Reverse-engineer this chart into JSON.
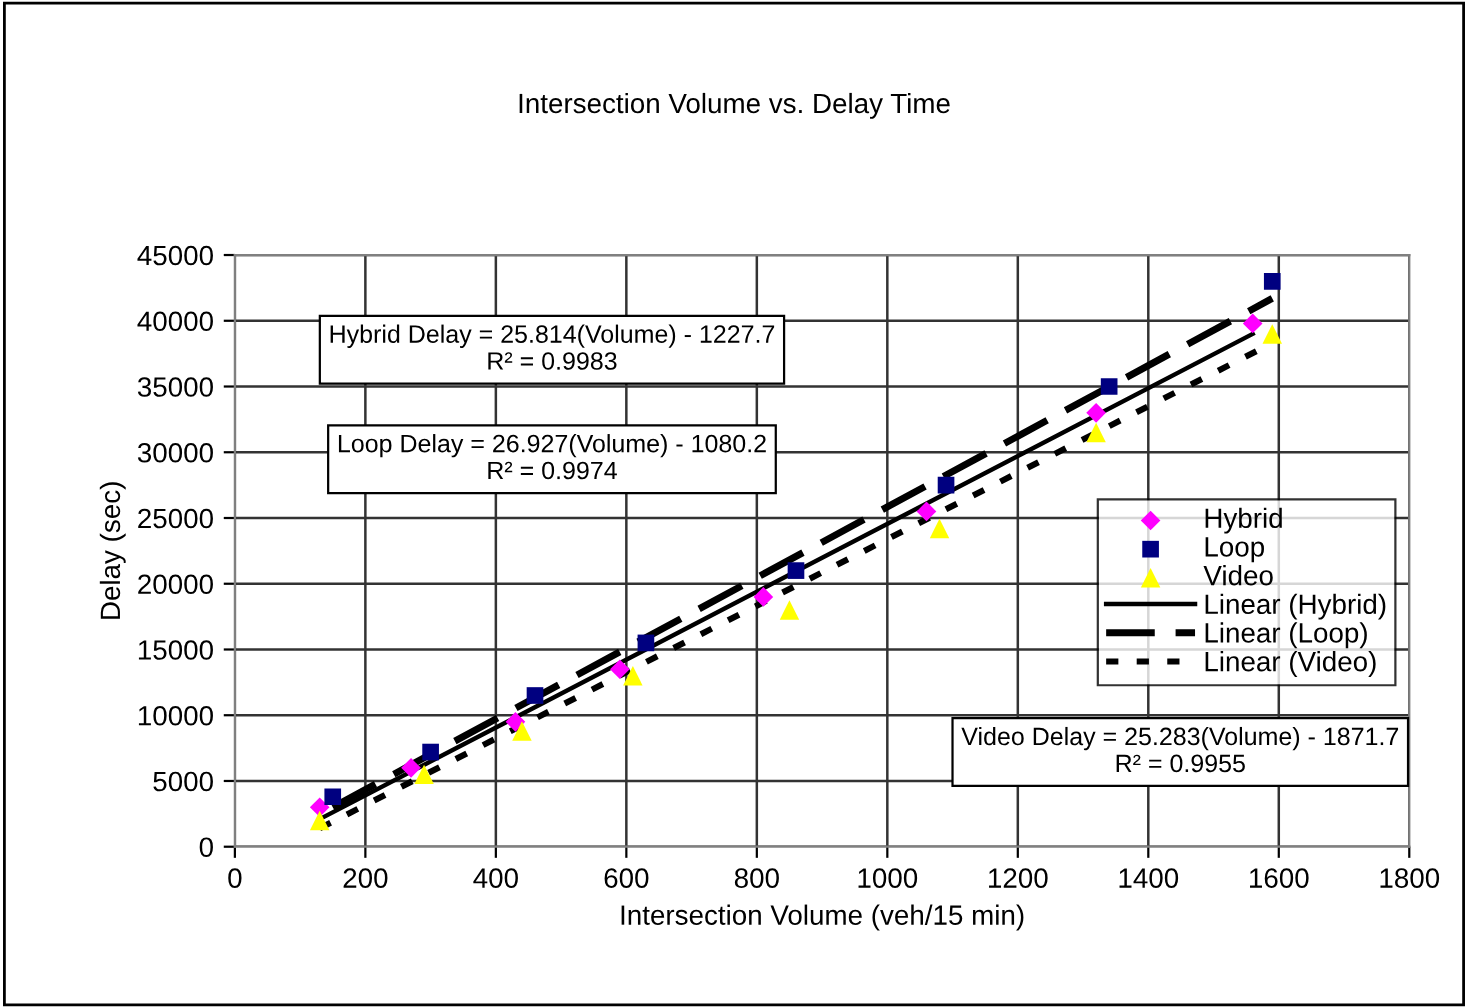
{
  "chart_data": {
    "type": "scatter",
    "title": "Intersection Volume vs. Delay Time",
    "xlabel": "Intersection Volume (veh/15 min)",
    "ylabel": "Delay (sec)",
    "xlim": [
      0,
      1800
    ],
    "xticks": [
      0,
      200,
      400,
      600,
      800,
      1000,
      1200,
      1400,
      1600,
      1800
    ],
    "ylim": [
      0,
      45000
    ],
    "yticks": [
      0,
      5000,
      10000,
      15000,
      20000,
      25000,
      30000,
      35000,
      40000,
      45000
    ],
    "grid": true,
    "legend": "right",
    "series": [
      {
        "name": "Hybrid",
        "marker": "diamond",
        "color": "#ff00ff",
        "x": [
          130,
          270,
          430,
          590,
          810,
          1060,
          1320,
          1560
        ],
        "values": [
          3000,
          6000,
          9500,
          13500,
          19000,
          25500,
          33000,
          39800
        ]
      },
      {
        "name": "Loop",
        "marker": "square",
        "color": "#000080",
        "x": [
          150,
          300,
          460,
          630,
          860,
          1090,
          1340,
          1590
        ],
        "values": [
          3800,
          7200,
          11500,
          15500,
          21000,
          27500,
          35000,
          43000
        ]
      },
      {
        "name": "Video",
        "marker": "triangle",
        "color": "#ffff00",
        "x": [
          130,
          290,
          440,
          610,
          850,
          1080,
          1320,
          1590
        ],
        "values": [
          2000,
          5500,
          8800,
          13000,
          18000,
          24200,
          31500,
          39000
        ]
      },
      {
        "name": "Linear (Hybrid)",
        "type": "line",
        "line_style": "solid",
        "color": "#000000",
        "x": [
          130,
          1560
        ],
        "values": [
          2100,
          39000
        ]
      },
      {
        "name": "Linear (Loop)",
        "type": "line",
        "line_style": "dashed",
        "color": "#000000",
        "x": [
          150,
          1590
        ],
        "values": [
          3000,
          41700
        ]
      },
      {
        "name": "Linear (Video)",
        "type": "line",
        "line_style": "dotted",
        "color": "#000000",
        "x": [
          130,
          1590
        ],
        "values": [
          1400,
          38300
        ]
      }
    ],
    "annotations": [
      "Hybrid Delay = 25.814(Volume) - 1227.7\nR² = 0.9983",
      "Loop Delay = 26.927(Volume) - 1080.2\nR² = 0.9974",
      "Video Delay = 25.283(Volume) - 1871.7\nR² = 0.9955"
    ]
  }
}
